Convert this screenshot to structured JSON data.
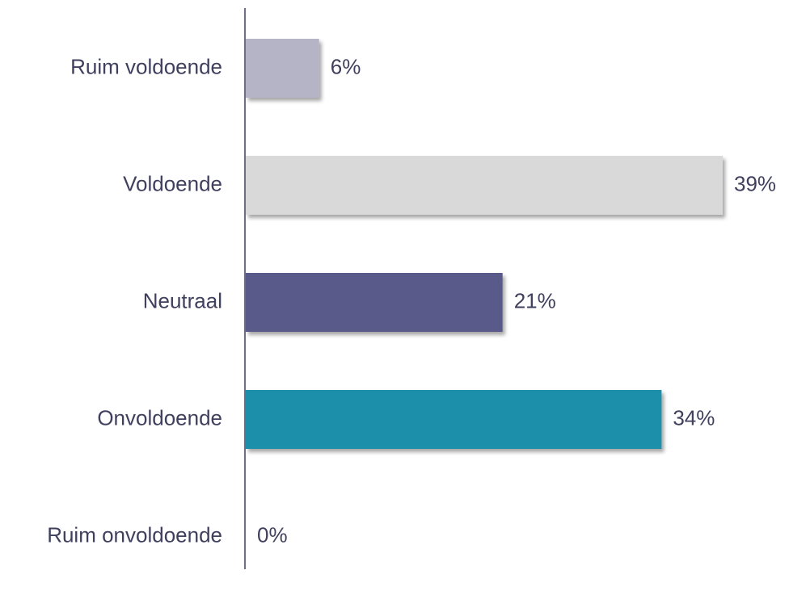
{
  "chart_data": {
    "type": "bar",
    "orientation": "horizontal",
    "categories": [
      "Ruim voldoende",
      "Voldoende",
      "Neutraal",
      "Onvoldoende",
      "Ruim onvoldoende"
    ],
    "values": [
      6,
      39,
      21,
      34,
      0
    ],
    "value_labels": [
      "6%",
      "39%",
      "21%",
      "34%",
      "0%"
    ],
    "colors": [
      "#b4b4c6",
      "#d9d9d9",
      "#5a5a8a",
      "#1e8fab",
      "#8c8cae"
    ]
  }
}
